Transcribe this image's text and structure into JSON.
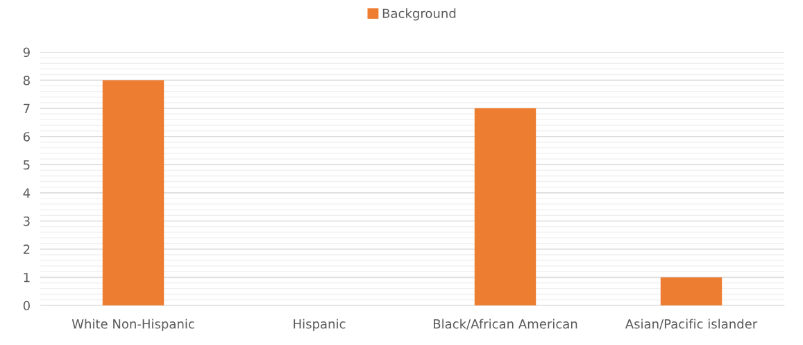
{
  "chart_data": {
    "type": "bar",
    "categories": [
      "White Non-Hispanic",
      "Hispanic",
      "Black/African American",
      "Asian/Pacific islander"
    ],
    "series": [
      {
        "name": "Background",
        "color": "#ed7d31",
        "values": [
          8,
          0,
          7,
          1
        ]
      }
    ],
    "ylim": [
      0,
      9
    ],
    "yticks": [
      0,
      1,
      2,
      3,
      4,
      5,
      6,
      7,
      8,
      9
    ],
    "grid": "y",
    "legend": "top"
  }
}
